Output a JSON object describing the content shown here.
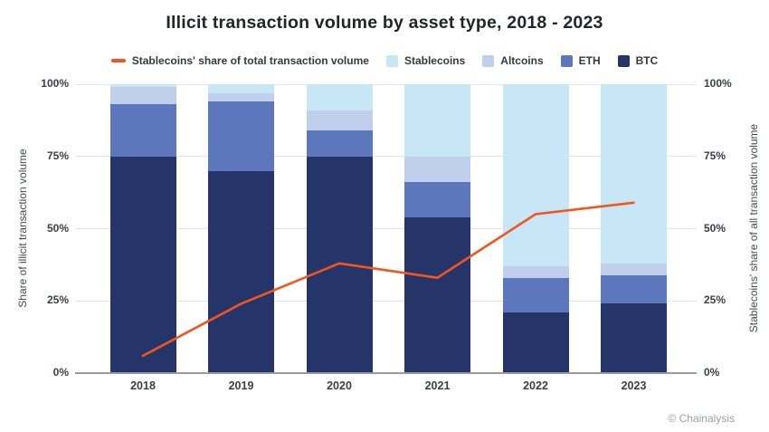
{
  "title": "Illicit transaction volume by asset type, 2018 - 2023",
  "legend": {
    "line_label": "Stablecoins' share of total transaction volume",
    "items": [
      "Stablecoins",
      "Altcoins",
      "ETH",
      "BTC"
    ]
  },
  "axes": {
    "left_title": "Share of illicit transaction volume",
    "right_title": "Stablecoins' share of all transaction volume",
    "tick_labels": [
      "0%",
      "25%",
      "50%",
      "75%",
      "100%"
    ]
  },
  "footer": {
    "credit": "© Chainalysis"
  },
  "colors": {
    "btc": "#263569",
    "eth": "#5d77bc",
    "altcoins": "#c0cfec",
    "stablecoins": "#c7e6f6",
    "line": "#f3561d",
    "grid": "#e4e4e6",
    "axis": "#9a9a9a"
  },
  "chart_data": {
    "type": "bar",
    "subtype": "stacked_percent_with_line_overlay",
    "title": "Illicit transaction volume by asset type, 2018 - 2023",
    "categories": [
      "2018",
      "2019",
      "2020",
      "2021",
      "2022",
      "2023"
    ],
    "stack_order_bottom_to_top": [
      "BTC",
      "ETH",
      "Altcoins",
      "Stablecoins"
    ],
    "series": [
      {
        "name": "BTC",
        "color": "#263569",
        "values": [
          75,
          70,
          75,
          54,
          21,
          24
        ]
      },
      {
        "name": "ETH",
        "color": "#5d77bc",
        "values": [
          18,
          24,
          9,
          12,
          12,
          10
        ]
      },
      {
        "name": "Altcoins",
        "color": "#c0cfec",
        "values": [
          6,
          3,
          7,
          9,
          4,
          4
        ]
      },
      {
        "name": "Stablecoins",
        "color": "#c7e6f6",
        "values": [
          1,
          3,
          9,
          25,
          63,
          62
        ]
      }
    ],
    "line_series": {
      "name": "Stablecoins' share of total transaction volume",
      "color": "#f3561d",
      "axis": "right",
      "values": [
        6,
        24,
        38,
        33,
        55,
        59
      ]
    },
    "ylabel_left": "Share of illicit transaction volume",
    "ylabel_right": "Stablecoins' share of all transaction volume",
    "ylim": [
      0,
      100
    ],
    "yticks": [
      0,
      25,
      50,
      75,
      100
    ],
    "grid": true,
    "legend_position": "top"
  }
}
